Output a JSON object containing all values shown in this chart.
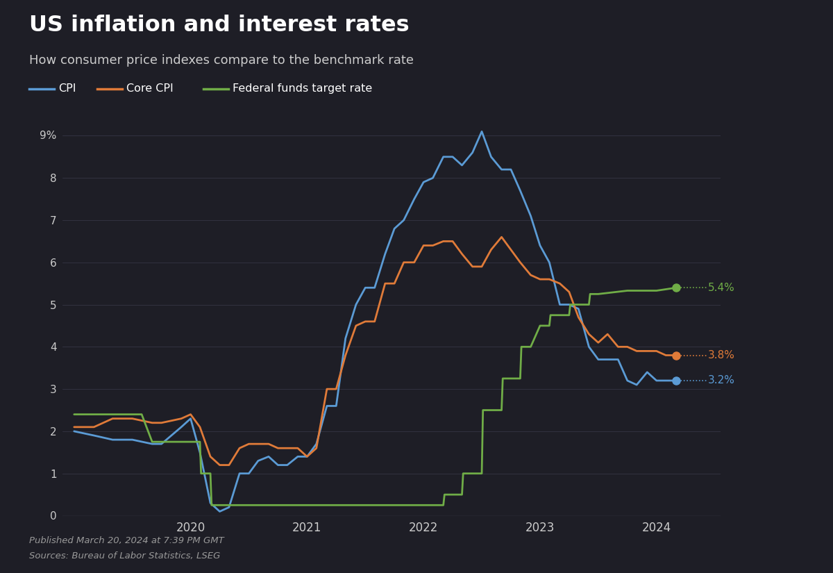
{
  "title": "US inflation and interest rates",
  "subtitle": "How consumer price indexes compare to the benchmark rate",
  "bg_color": "#1e1e26",
  "text_color": "#ffffff",
  "subtext_color": "#cccccc",
  "grid_color": "#3a3a4a",
  "published": "Published March 20, 2024 at 7:39 PM GMT",
  "sources": "Sources: Bureau of Labor Statistics, LSEG",
  "end_labels": {
    "fed": "5.4%",
    "core_cpi": "3.8%",
    "cpi": "3.2%"
  },
  "legend": [
    {
      "label": "CPI",
      "color": "#5b9bd5"
    },
    {
      "label": "Core CPI",
      "color": "#e07b39"
    },
    {
      "label": "Federal funds target rate",
      "color": "#70ad47"
    }
  ],
  "cpi_color": "#5b9bd5",
  "core_cpi_color": "#e07b39",
  "fed_color": "#70ad47",
  "cpi_x": [
    2019.0,
    2019.17,
    2019.33,
    2019.5,
    2019.67,
    2019.75,
    2019.92,
    2020.0,
    2020.08,
    2020.17,
    2020.25,
    2020.33,
    2020.42,
    2020.5,
    2020.58,
    2020.67,
    2020.75,
    2020.83,
    2020.92,
    2021.0,
    2021.08,
    2021.17,
    2021.25,
    2021.33,
    2021.42,
    2021.5,
    2021.58,
    2021.67,
    2021.75,
    2021.83,
    2021.92,
    2022.0,
    2022.08,
    2022.17,
    2022.25,
    2022.33,
    2022.42,
    2022.5,
    2022.58,
    2022.67,
    2022.75,
    2022.83,
    2022.92,
    2023.0,
    2023.08,
    2023.17,
    2023.25,
    2023.33,
    2023.42,
    2023.5,
    2023.58,
    2023.67,
    2023.75,
    2023.83,
    2023.92,
    2024.0,
    2024.08,
    2024.17
  ],
  "cpi_y": [
    2.0,
    1.9,
    1.8,
    1.8,
    1.7,
    1.7,
    2.1,
    2.3,
    1.5,
    0.3,
    0.1,
    0.2,
    1.0,
    1.0,
    1.3,
    1.4,
    1.2,
    1.2,
    1.4,
    1.4,
    1.7,
    2.6,
    2.6,
    4.2,
    5.0,
    5.4,
    5.4,
    6.2,
    6.8,
    7.0,
    7.5,
    7.9,
    8.0,
    8.5,
    8.5,
    8.3,
    8.6,
    9.1,
    8.5,
    8.2,
    8.2,
    7.7,
    7.1,
    6.4,
    6.0,
    5.0,
    5.0,
    4.9,
    4.0,
    3.7,
    3.7,
    3.7,
    3.2,
    3.1,
    3.4,
    3.2,
    3.2,
    3.2
  ],
  "core_cpi_x": [
    2019.0,
    2019.17,
    2019.33,
    2019.5,
    2019.67,
    2019.75,
    2019.92,
    2020.0,
    2020.08,
    2020.17,
    2020.25,
    2020.33,
    2020.42,
    2020.5,
    2020.58,
    2020.67,
    2020.75,
    2020.83,
    2020.92,
    2021.0,
    2021.08,
    2021.17,
    2021.25,
    2021.33,
    2021.42,
    2021.5,
    2021.58,
    2021.67,
    2021.75,
    2021.83,
    2021.92,
    2022.0,
    2022.08,
    2022.17,
    2022.25,
    2022.33,
    2022.42,
    2022.5,
    2022.58,
    2022.67,
    2022.75,
    2022.83,
    2022.92,
    2023.0,
    2023.08,
    2023.17,
    2023.25,
    2023.33,
    2023.42,
    2023.5,
    2023.58,
    2023.67,
    2023.75,
    2023.83,
    2023.92,
    2024.0,
    2024.08,
    2024.17
  ],
  "core_cpi_y": [
    2.1,
    2.1,
    2.3,
    2.3,
    2.2,
    2.2,
    2.3,
    2.4,
    2.1,
    1.4,
    1.2,
    1.2,
    1.6,
    1.7,
    1.7,
    1.7,
    1.6,
    1.6,
    1.6,
    1.4,
    1.6,
    3.0,
    3.0,
    3.8,
    4.5,
    4.6,
    4.6,
    5.5,
    5.5,
    6.0,
    6.0,
    6.4,
    6.4,
    6.5,
    6.5,
    6.2,
    5.9,
    5.9,
    6.3,
    6.6,
    6.3,
    6.0,
    5.7,
    5.6,
    5.6,
    5.5,
    5.3,
    4.7,
    4.3,
    4.1,
    4.3,
    4.0,
    4.0,
    3.9,
    3.9,
    3.9,
    3.8,
    3.8
  ],
  "fed_x": [
    2019.0,
    2019.5,
    2019.58,
    2019.67,
    2019.75,
    2019.92,
    2020.0,
    2020.08,
    2020.09,
    2020.17,
    2020.18,
    2020.25,
    2020.5,
    2020.75,
    2021.0,
    2021.25,
    2021.5,
    2021.75,
    2021.92,
    2022.0,
    2022.08,
    2022.17,
    2022.18,
    2022.33,
    2022.34,
    2022.5,
    2022.51,
    2022.67,
    2022.68,
    2022.83,
    2022.84,
    2022.92,
    2023.0,
    2023.08,
    2023.09,
    2023.25,
    2023.26,
    2023.42,
    2023.43,
    2023.5,
    2023.75,
    2024.0,
    2024.17
  ],
  "fed_y": [
    2.4,
    2.4,
    2.4,
    1.75,
    1.75,
    1.75,
    1.75,
    1.75,
    1.0,
    1.0,
    0.25,
    0.25,
    0.25,
    0.25,
    0.25,
    0.25,
    0.25,
    0.25,
    0.25,
    0.25,
    0.25,
    0.25,
    0.5,
    0.5,
    1.0,
    1.0,
    2.5,
    2.5,
    3.25,
    3.25,
    4.0,
    4.0,
    4.5,
    4.5,
    4.75,
    4.75,
    5.0,
    5.0,
    5.25,
    5.25,
    5.33,
    5.33,
    5.4
  ],
  "ylim": [
    0,
    9.5
  ],
  "xmin": 2018.9,
  "xmax": 2024.55,
  "yticks": [
    0,
    1,
    2,
    3,
    4,
    5,
    6,
    7,
    8,
    9
  ],
  "xticks": [
    2020,
    2021,
    2022,
    2023,
    2024
  ],
  "xtick_labels": [
    "2020",
    "2021",
    "2022",
    "2023",
    "2024"
  ]
}
